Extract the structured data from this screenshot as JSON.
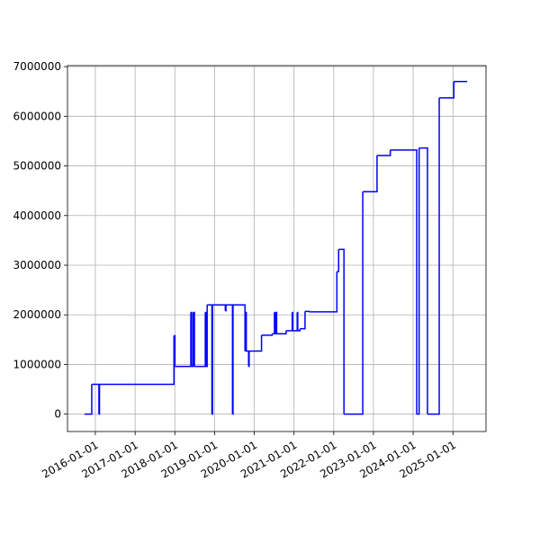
{
  "chart_data": {
    "type": "step",
    "grid": true,
    "xlim": [
      "2015-04-20",
      "2025-11-01"
    ],
    "ylim": [
      -350000,
      7020000
    ],
    "xticks": [
      "2016-01-01",
      "2017-01-01",
      "2018-01-01",
      "2019-01-01",
      "2020-01-01",
      "2021-01-01",
      "2022-01-01",
      "2023-01-01",
      "2024-01-01",
      "2025-01-01"
    ],
    "yticks": [
      0,
      1000000,
      2000000,
      3000000,
      4000000,
      5000000,
      6000000,
      7000000
    ],
    "series": [
      {
        "color": "#0000ff",
        "x": [
          "2015-09-23",
          "2015-11-29",
          "2016-02-03",
          "2016-02-08",
          "2017-12-24",
          "2018-01-02",
          "2018-05-28",
          "2018-06-05",
          "2018-06-20",
          "2018-06-30",
          "2018-10-08",
          "2018-10-15",
          "2018-10-25",
          "2018-12-08",
          "2018-12-14",
          "2019-04-10",
          "2019-04-16",
          "2019-06-15",
          "2019-06-20",
          "2019-10-08",
          "2019-10-14",
          "2019-10-20",
          "2019-11-10",
          "2019-11-15",
          "2020-03-08",
          "2020-06-14",
          "2020-07-05",
          "2020-07-10",
          "2020-07-20",
          "2020-07-25",
          "2020-10-20",
          "2020-12-15",
          "2020-12-20",
          "2021-01-30",
          "2021-02-04",
          "2021-02-25",
          "2021-04-12",
          "2021-05-20",
          "2022-01-30",
          "2022-02-15",
          "2022-04-05",
          "2022-09-25",
          "2023-02-03",
          "2023-06-05",
          "2024-02-03",
          "2024-02-25",
          "2024-05-12",
          "2024-08-28",
          "2025-01-09",
          "2025-05-12"
        ],
        "values": [
          0,
          600000,
          0,
          600000,
          1580000,
          960000,
          2050000,
          960000,
          2050000,
          960000,
          2050000,
          960000,
          2200000,
          0,
          2200000,
          2080000,
          2200000,
          0,
          2200000,
          1270000,
          2050000,
          1270000,
          960000,
          1270000,
          1590000,
          1620000,
          2050000,
          1620000,
          2050000,
          1620000,
          1680000,
          2050000,
          1680000,
          2050000,
          1680000,
          1720000,
          2070000,
          2060000,
          2870000,
          3320000,
          0,
          4480000,
          5210000,
          5320000,
          0,
          5360000,
          0,
          6370000,
          6700000,
          6700000
        ]
      }
    ]
  }
}
